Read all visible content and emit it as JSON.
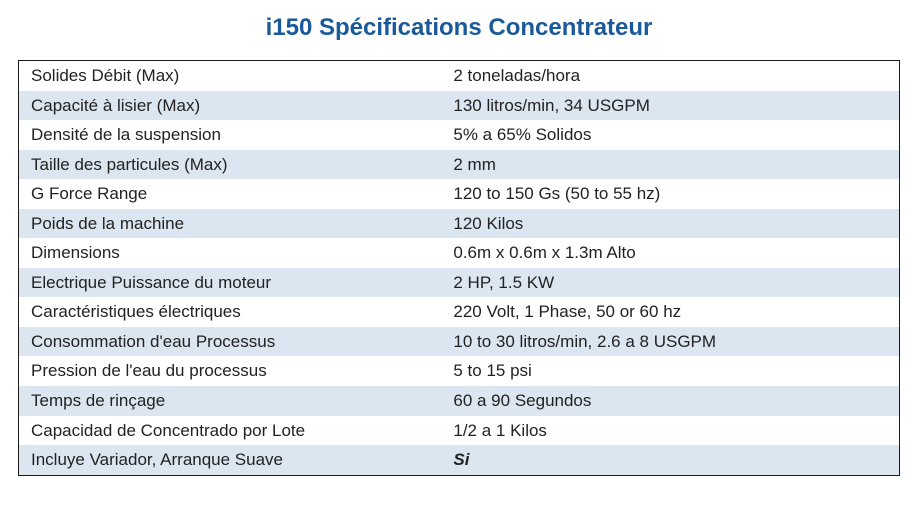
{
  "title": "i150 Spécifications Concentrateur",
  "colors": {
    "title": "#1b5a9a",
    "border": "#1a1a1a",
    "stripe_even": "#dbe6f1",
    "stripe_odd": "#ffffff",
    "text": "#222222"
  },
  "typography": {
    "title_fontsize_pt": 18,
    "body_fontsize_pt": 13,
    "font_family": "Trebuchet MS / Lucida-style humanist sans"
  },
  "table": {
    "type": "table",
    "columns": [
      "label",
      "value"
    ],
    "column_widths_pct": [
      48,
      52
    ],
    "stripe": true,
    "rows": [
      {
        "label": "Solides Débit (Max)",
        "value": "2 toneladas/hora",
        "italic": false
      },
      {
        "label": "Capacité à lisier (Max)",
        "value": "130 litros/min, 34 USGPM",
        "italic": false
      },
      {
        "label": "Densité de la suspension",
        "value": "5% a 65% Solidos",
        "italic": false
      },
      {
        "label": "Taille des particules (Max)",
        "value": "2 mm",
        "italic": false
      },
      {
        "label": "G Force Range",
        "value": "120 to 150 Gs (50 to 55 hz)",
        "italic": false
      },
      {
        "label": "Poids de la machine",
        "value": "120 Kilos",
        "italic": false
      },
      {
        "label": "Dimensions",
        "value": "0.6m x 0.6m x 1.3m Alto",
        "italic": false
      },
      {
        "label": "Electrique Puissance du moteur",
        "value": "2 HP, 1.5 KW",
        "italic": false
      },
      {
        "label": "Caractéristiques électriques",
        "value": "220 Volt, 1 Phase, 50 or 60 hz",
        "italic": false
      },
      {
        "label": "Consommation d'eau Processus",
        "value": "10 to 30 litros/min, 2.6 a 8 USGPM",
        "italic": false
      },
      {
        "label": "Pression de l'eau du processus",
        "value": "5 to 15 psi",
        "italic": false
      },
      {
        "label": "Temps de rinçage",
        "value": "60 a 90 Segundos",
        "italic": false
      },
      {
        "label": "Capacidad de Concentrado por Lote",
        "value": "1/2 a 1 Kilos",
        "italic": false
      },
      {
        "label": "Incluye Variador, Arranque Suave",
        "value": "Si",
        "italic": true
      }
    ]
  }
}
